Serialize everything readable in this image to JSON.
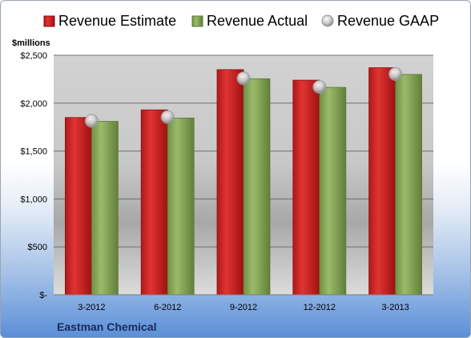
{
  "chart_data": {
    "type": "bar",
    "ylabel": "$millions",
    "footer": "Eastman Chemical",
    "categories": [
      "3-2012",
      "6-2012",
      "9-2012",
      "12-2012",
      "3-2013"
    ],
    "ylim": [
      0,
      2500
    ],
    "yticks": [
      0,
      500,
      1000,
      1500,
      2000,
      2500
    ],
    "ytick_labels": [
      "$-",
      "$500",
      "$1,000",
      "$1,500",
      "$2,000",
      "$2,500"
    ],
    "grid": true,
    "legend_position": "top",
    "series": [
      {
        "name": "Revenue Estimate",
        "style": "bar",
        "color": "#d42424",
        "values": [
          1850,
          1930,
          2350,
          2240,
          2370
        ]
      },
      {
        "name": "Revenue Actual",
        "style": "bar",
        "color": "#8bab5c",
        "values": [
          1810,
          1845,
          2255,
          2165,
          2300
        ]
      },
      {
        "name": "Revenue GAAP",
        "style": "marker",
        "color": "#c8c8c8",
        "values": [
          1815,
          1855,
          2260,
          2170,
          2305
        ]
      }
    ]
  }
}
